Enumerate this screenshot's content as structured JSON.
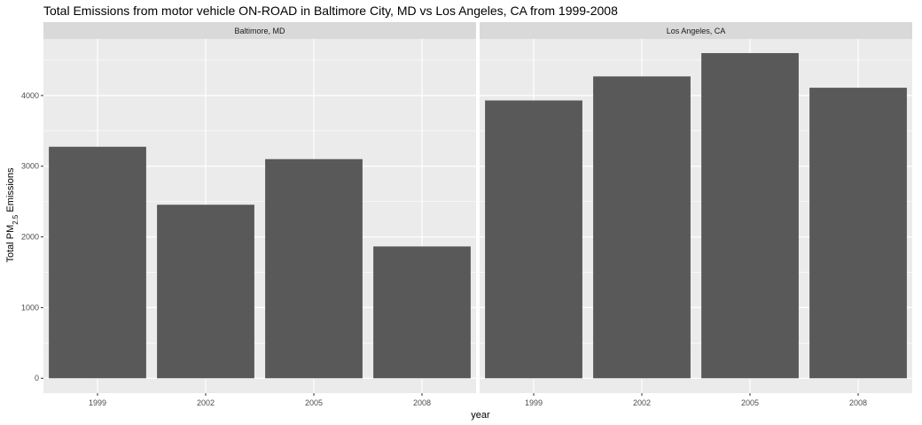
{
  "chart_data": {
    "type": "bar",
    "title": "Total Emissions from motor vehicle ON-ROAD in Baltimore City, MD  vs Los Angeles, CA from 1999-2008",
    "xlabel": "year",
    "ylabel": {
      "prefix": "Total PM",
      "subscript": "2.5",
      "suffix": " Emissions"
    },
    "categories": [
      "1999",
      "2002",
      "2005",
      "2008"
    ],
    "ylim": [
      0,
      4600
    ],
    "yticks": [
      0,
      1000,
      2000,
      3000,
      4000
    ],
    "ytick_labels": [
      "0",
      "1000",
      "2000",
      "3000",
      "4000"
    ],
    "grid": true,
    "legend": "none",
    "colors": {
      "bar": "#595959",
      "panel": "#ebebeb",
      "strip": "#d9d9d9",
      "grid": "#ffffff"
    },
    "facets": [
      {
        "label": "Baltimore, MD",
        "values": [
          3275,
          2455,
          3100,
          1865
        ]
      },
      {
        "label": "Los Angeles, CA",
        "values": [
          3930,
          4270,
          4600,
          4110
        ]
      }
    ]
  }
}
